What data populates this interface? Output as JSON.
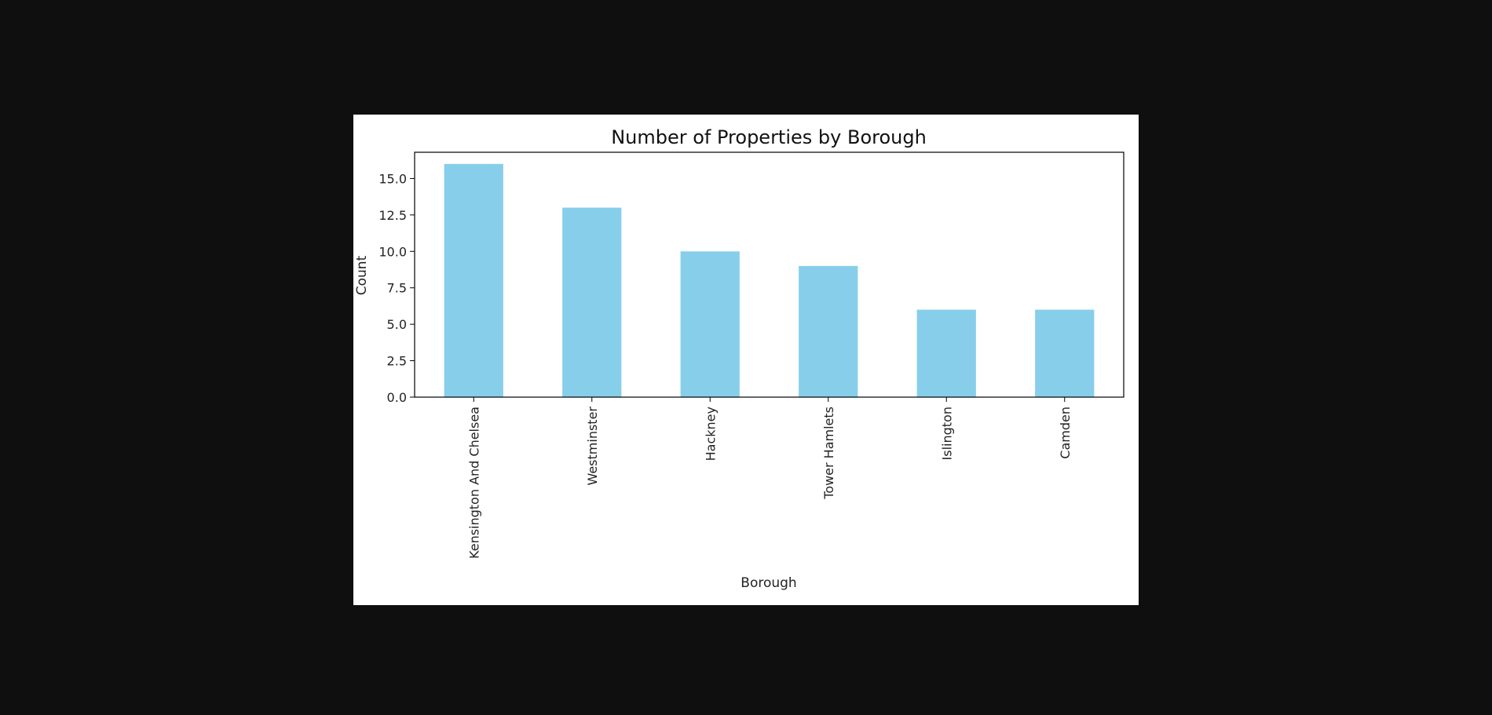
{
  "colors": {
    "background": "#0f0f0f",
    "figure": "#ffffff",
    "bar": "#87ceeb",
    "axis": "#000000"
  },
  "chart_data": {
    "type": "bar",
    "title": "Number of Properties by Borough",
    "xlabel": "Borough",
    "ylabel": "Count",
    "categories": [
      "Kensington And Chelsea",
      "Westminster",
      "Hackney",
      "Tower Hamlets",
      "Islington",
      "Camden"
    ],
    "values": [
      16,
      13,
      10,
      9,
      6,
      6
    ],
    "ylim": [
      0,
      16.8
    ],
    "yticks": [
      "0.0",
      "2.5",
      "5.0",
      "7.5",
      "10.0",
      "12.5",
      "15.0"
    ],
    "grid": false,
    "legend": "none"
  }
}
